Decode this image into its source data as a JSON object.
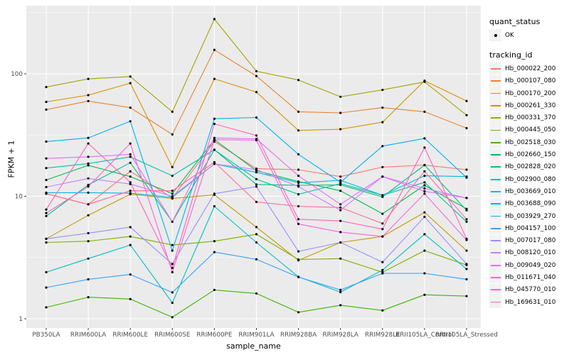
{
  "theme": {
    "panel_bg": "#EBEBEB",
    "grid_color": "#FFFFFF",
    "axis_text_color": "#4D4D4D",
    "title_color": "#000000",
    "point_color": "#000000",
    "legend_key_bg": "#F2F2F2",
    "tick_color": "#333333"
  },
  "chart_data": {
    "type": "line",
    "title": "",
    "xlabel": "sample_name",
    "ylabel": "FPKM + 1",
    "y_scale": "log10",
    "ylim": [
      0.85,
      360
    ],
    "grid": "major and minor, white on gray panel",
    "legend_position": "right",
    "y_ticks": [
      {
        "label": "1",
        "value": 1
      },
      {
        "label": "10",
        "value": 10
      },
      {
        "label": "100",
        "value": 100
      }
    ],
    "y_minor_values": [
      3.162,
      31.62,
      316.2
    ],
    "categories": [
      "PB350LA",
      "RRIM600LA",
      "RRIM600LE",
      "RRIM600SE",
      "RRIM600PE",
      "RRIM901LA",
      "RRIM928BA",
      "RRIM928LA",
      "RRIM928LE",
      "RRII105LA_Control",
      "RRII105LA_Stressed"
    ],
    "legend": {
      "quant_status": {
        "title": "quant_status",
        "items": [
          {
            "label": "OK",
            "symbol": "point",
            "color": "#000000"
          }
        ]
      },
      "tracking_id": {
        "title": "tracking_id"
      }
    },
    "series": [
      {
        "name": "Hb_000022_200",
        "color": "#F8766D",
        "values": [
          10.5,
          8.6,
          16,
          9.7,
          28,
          16.8,
          16.5,
          14.5,
          17.3,
          18,
          16.5
        ]
      },
      {
        "name": "Hb_000107_080",
        "color": "#EA8331",
        "values": [
          51,
          60,
          53,
          32,
          157,
          96,
          49,
          48,
          53,
          49,
          36
        ]
      },
      {
        "name": "Hb_000170_200",
        "color": "#D89000",
        "values": [
          59,
          67,
          84,
          17.3,
          91,
          71,
          34.5,
          35.3,
          40.3,
          88,
          60
        ]
      },
      {
        "name": "Hb_000261_330",
        "color": "#C09B00",
        "values": [
          4.5,
          7,
          10.4,
          9.6,
          10.3,
          5.6,
          3,
          4.2,
          4.7,
          7.4,
          3.6
        ]
      },
      {
        "name": "Hb_000331_370",
        "color": "#A3A500",
        "values": [
          78,
          91,
          95,
          49,
          280,
          105,
          89,
          65,
          74,
          86,
          46
        ]
      },
      {
        "name": "Hb_000445_050",
        "color": "#7CAE00",
        "values": [
          4.2,
          4.3,
          4.7,
          4,
          4.3,
          4.9,
          3.05,
          3.1,
          2.4,
          3.6,
          2.75
        ]
      },
      {
        "name": "Hb_002518_030",
        "color": "#39B600",
        "values": [
          1.24,
          1.5,
          1.45,
          1.03,
          1.72,
          1.61,
          1.13,
          1.29,
          1.17,
          1.57,
          1.53
        ]
      },
      {
        "name": "Hb_002660_150",
        "color": "#00BB4E",
        "values": [
          13.6,
          17.9,
          14.5,
          10.5,
          29,
          16.2,
          13.2,
          11.1,
          7.2,
          12.3,
          7.9
        ]
      },
      {
        "name": "Hb_002828_020",
        "color": "#00BF7D",
        "values": [
          6.9,
          12.4,
          18.8,
          6.2,
          24,
          12.5,
          12.3,
          12.4,
          9.9,
          18,
          7.7
        ]
      },
      {
        "name": "Hb_002900_080",
        "color": "#00C1A3",
        "values": [
          17,
          18.5,
          21,
          14.7,
          24,
          13.8,
          10.4,
          12.7,
          10.2,
          13,
          6.2
        ]
      },
      {
        "name": "Hb_003669_010",
        "color": "#00BFC4",
        "values": [
          2.4,
          3.1,
          4,
          1.35,
          8.3,
          4.2,
          2.2,
          1.65,
          2.5,
          4.9,
          2.55
        ]
      },
      {
        "name": "Hb_003688_090",
        "color": "#00BAE0",
        "values": [
          10.7,
          10.7,
          10.6,
          9.8,
          18.4,
          15.7,
          12.9,
          13.5,
          10.2,
          14.7,
          14.5
        ]
      },
      {
        "name": "Hb_003929_270",
        "color": "#00B0F6",
        "values": [
          28,
          30,
          41,
          3.6,
          43,
          44,
          22,
          13,
          25.7,
          29.7,
          14.2
        ]
      },
      {
        "name": "Hb_004157_100",
        "color": "#35A2FF",
        "values": [
          1.8,
          2.1,
          2.3,
          1.64,
          3.5,
          3.06,
          2.19,
          1.72,
          2.35,
          2.35,
          2.1
        ]
      },
      {
        "name": "Hb_007017_080",
        "color": "#9590FF",
        "values": [
          4.5,
          5,
          5.6,
          2.8,
          10.5,
          12,
          3.55,
          4.2,
          2.9,
          6.8,
          2.8
        ]
      },
      {
        "name": "Hb_008120_010",
        "color": "#C77CFF",
        "values": [
          11.9,
          14,
          12.6,
          10,
          18.4,
          16.5,
          12,
          7.7,
          14.5,
          11.6,
          9.7
        ]
      },
      {
        "name": "Hb_009049_020",
        "color": "#E76BF3",
        "values": [
          20.4,
          21,
          22,
          6.2,
          30,
          29.4,
          14.7,
          8.6,
          14.5,
          11,
          9.7
        ]
      },
      {
        "name": "Hb_011671_040",
        "color": "#FA62DB",
        "values": [
          7.3,
          12,
          27,
          2.4,
          29,
          28.7,
          5.95,
          5.1,
          4.7,
          10.5,
          4.4
        ]
      },
      {
        "name": "Hb_045770_010",
        "color": "#FF62BC",
        "values": [
          7.8,
          27,
          13,
          2.6,
          39,
          31.4,
          6.5,
          6.3,
          5.4,
          25,
          4.5
        ]
      },
      {
        "name": "Hb_169631_010",
        "color": "#FF6A98",
        "values": [
          10.5,
          8.6,
          11.1,
          11.1,
          19,
          9,
          8.3,
          8.1,
          6,
          16,
          6.5
        ]
      }
    ]
  }
}
